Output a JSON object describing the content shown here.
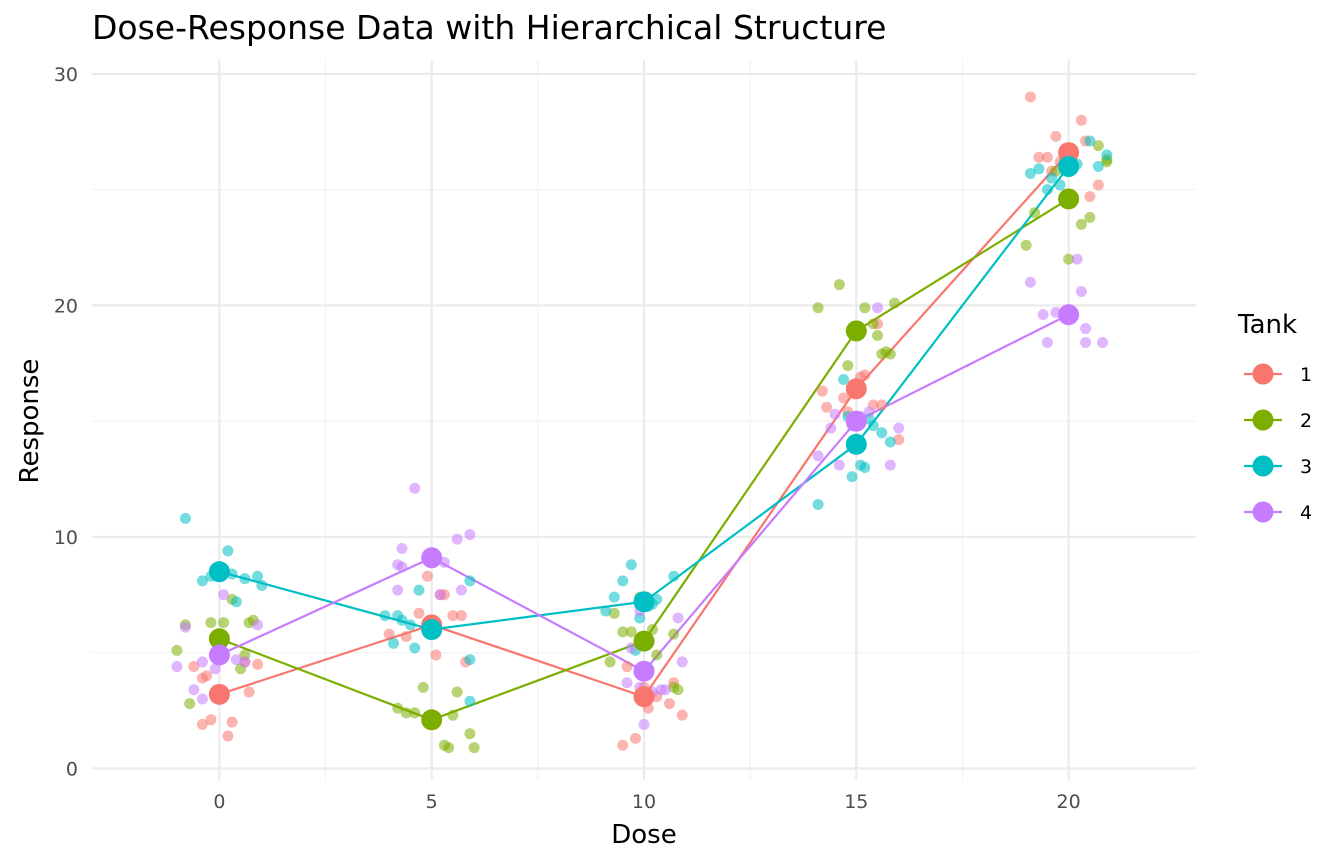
{
  "chart_data": {
    "type": "scatter",
    "title": "Dose-Response Data with Hierarchical Structure",
    "xlabel": "Dose",
    "ylabel": "Response",
    "xlim": [
      -3,
      23
    ],
    "ylim": [
      -0.5,
      30.6
    ],
    "x_ticks": [
      0,
      5,
      10,
      15,
      20
    ],
    "y_ticks": [
      0,
      10,
      20,
      30
    ],
    "grid": true,
    "legend": {
      "title": "Tank",
      "placement": "right"
    },
    "series": [
      {
        "name": "1",
        "color": "#F8766D",
        "means": [
          {
            "x": 0,
            "y": 3.2
          },
          {
            "x": 5,
            "y": 6.2
          },
          {
            "x": 10,
            "y": 3.1
          },
          {
            "x": 15,
            "y": 16.4
          },
          {
            "x": 20,
            "y": 26.6
          }
        ],
        "points": [
          {
            "x": -0.6,
            "y": 4.4
          },
          {
            "x": -0.4,
            "y": 3.9
          },
          {
            "x": -0.3,
            "y": 4.0
          },
          {
            "x": -0.4,
            "y": 1.9
          },
          {
            "x": -0.2,
            "y": 2.1
          },
          {
            "x": 0.2,
            "y": 1.4
          },
          {
            "x": 0.3,
            "y": 2.0
          },
          {
            "x": 0.6,
            "y": 4.6
          },
          {
            "x": 0.7,
            "y": 3.3
          },
          {
            "x": 0.9,
            "y": 4.5
          },
          {
            "x": 4.0,
            "y": 5.8
          },
          {
            "x": 4.7,
            "y": 6.7
          },
          {
            "x": 5.1,
            "y": 4.9
          },
          {
            "x": 5.3,
            "y": 7.5
          },
          {
            "x": 5.2,
            "y": 7.5
          },
          {
            "x": 5.5,
            "y": 6.6
          },
          {
            "x": 5.7,
            "y": 6.6
          },
          {
            "x": 5.8,
            "y": 4.6
          },
          {
            "x": 4.9,
            "y": 8.3
          },
          {
            "x": 4.4,
            "y": 5.7
          },
          {
            "x": 9.5,
            "y": 1.0
          },
          {
            "x": 9.8,
            "y": 1.3
          },
          {
            "x": 10.1,
            "y": 2.6
          },
          {
            "x": 10.6,
            "y": 2.8
          },
          {
            "x": 10.7,
            "y": 3.7
          },
          {
            "x": 10.9,
            "y": 2.3
          },
          {
            "x": 9.6,
            "y": 4.4
          },
          {
            "x": 10.0,
            "y": 3.5
          },
          {
            "x": 10.3,
            "y": 3.1
          },
          {
            "x": 9.9,
            "y": 3.0
          },
          {
            "x": 14.2,
            "y": 16.3
          },
          {
            "x": 14.3,
            "y": 15.6
          },
          {
            "x": 14.8,
            "y": 15.4
          },
          {
            "x": 15.1,
            "y": 16.9
          },
          {
            "x": 15.2,
            "y": 17.0
          },
          {
            "x": 15.4,
            "y": 15.7
          },
          {
            "x": 15.6,
            "y": 15.7
          },
          {
            "x": 16.0,
            "y": 14.2
          },
          {
            "x": 14.7,
            "y": 16.0
          },
          {
            "x": 15.5,
            "y": 19.2
          },
          {
            "x": 19.1,
            "y": 29.0
          },
          {
            "x": 19.3,
            "y": 26.4
          },
          {
            "x": 19.5,
            "y": 26.4
          },
          {
            "x": 19.7,
            "y": 27.3
          },
          {
            "x": 19.6,
            "y": 25.8
          },
          {
            "x": 20.3,
            "y": 28.0
          },
          {
            "x": 20.4,
            "y": 27.1
          },
          {
            "x": 20.5,
            "y": 24.7
          },
          {
            "x": 20.7,
            "y": 25.2
          },
          {
            "x": 19.8,
            "y": 26.2
          }
        ]
      },
      {
        "name": "2",
        "color": "#7CAE00",
        "means": [
          {
            "x": 0,
            "y": 5.6
          },
          {
            "x": 5,
            "y": 2.1
          },
          {
            "x": 10,
            "y": 5.5
          },
          {
            "x": 15,
            "y": 18.9
          },
          {
            "x": 20,
            "y": 24.6
          }
        ],
        "points": [
          {
            "x": -1.0,
            "y": 5.1
          },
          {
            "x": -0.8,
            "y": 6.2
          },
          {
            "x": -0.7,
            "y": 2.8
          },
          {
            "x": -0.2,
            "y": 6.3
          },
          {
            "x": 0.1,
            "y": 6.3
          },
          {
            "x": 0.3,
            "y": 7.3
          },
          {
            "x": 0.5,
            "y": 4.3
          },
          {
            "x": 0.6,
            "y": 4.9
          },
          {
            "x": 0.7,
            "y": 6.3
          },
          {
            "x": 0.8,
            "y": 6.4
          },
          {
            "x": 4.2,
            "y": 2.6
          },
          {
            "x": 4.4,
            "y": 2.4
          },
          {
            "x": 4.6,
            "y": 2.4
          },
          {
            "x": 4.8,
            "y": 3.5
          },
          {
            "x": 5.3,
            "y": 1.0
          },
          {
            "x": 5.4,
            "y": 0.9
          },
          {
            "x": 5.6,
            "y": 3.3
          },
          {
            "x": 5.9,
            "y": 1.5
          },
          {
            "x": 6.0,
            "y": 0.9
          },
          {
            "x": 5.5,
            "y": 2.3
          },
          {
            "x": 9.2,
            "y": 4.6
          },
          {
            "x": 9.3,
            "y": 6.7
          },
          {
            "x": 9.5,
            "y": 5.9
          },
          {
            "x": 9.7,
            "y": 5.9
          },
          {
            "x": 9.9,
            "y": 7.4
          },
          {
            "x": 10.2,
            "y": 6.0
          },
          {
            "x": 10.7,
            "y": 5.8
          },
          {
            "x": 10.7,
            "y": 3.5
          },
          {
            "x": 10.8,
            "y": 3.4
          },
          {
            "x": 10.3,
            "y": 4.9
          },
          {
            "x": 14.1,
            "y": 19.9
          },
          {
            "x": 14.6,
            "y": 20.9
          },
          {
            "x": 14.8,
            "y": 17.4
          },
          {
            "x": 15.2,
            "y": 19.9
          },
          {
            "x": 15.4,
            "y": 19.2
          },
          {
            "x": 15.5,
            "y": 18.7
          },
          {
            "x": 15.6,
            "y": 17.9
          },
          {
            "x": 15.7,
            "y": 18.0
          },
          {
            "x": 15.9,
            "y": 20.1
          },
          {
            "x": 15.8,
            "y": 17.9
          },
          {
            "x": 19.0,
            "y": 22.6
          },
          {
            "x": 19.2,
            "y": 24.0
          },
          {
            "x": 19.7,
            "y": 25.8
          },
          {
            "x": 20.0,
            "y": 22.0
          },
          {
            "x": 20.3,
            "y": 23.5
          },
          {
            "x": 20.5,
            "y": 23.8
          },
          {
            "x": 20.7,
            "y": 26.9
          },
          {
            "x": 20.9,
            "y": 26.3
          },
          {
            "x": 20.9,
            "y": 26.2
          },
          {
            "x": 19.9,
            "y": 26.2
          }
        ]
      },
      {
        "name": "3",
        "color": "#00BFC4",
        "means": [
          {
            "x": 0,
            "y": 8.5
          },
          {
            "x": 5,
            "y": 6.0
          },
          {
            "x": 10,
            "y": 7.2
          },
          {
            "x": 15,
            "y": 14.0
          },
          {
            "x": 20,
            "y": 26.0
          }
        ],
        "points": [
          {
            "x": -0.8,
            "y": 10.8
          },
          {
            "x": -0.2,
            "y": 8.3
          },
          {
            "x": 0.2,
            "y": 9.4
          },
          {
            "x": 0.3,
            "y": 8.4
          },
          {
            "x": 0.4,
            "y": 7.2
          },
          {
            "x": 0.6,
            "y": 8.2
          },
          {
            "x": 0.9,
            "y": 8.3
          },
          {
            "x": 1.0,
            "y": 7.9
          },
          {
            "x": 0.1,
            "y": 8.6
          },
          {
            "x": -0.4,
            "y": 8.1
          },
          {
            "x": 3.9,
            "y": 6.6
          },
          {
            "x": 4.1,
            "y": 5.4
          },
          {
            "x": 4.3,
            "y": 6.4
          },
          {
            "x": 4.6,
            "y": 5.2
          },
          {
            "x": 4.7,
            "y": 7.7
          },
          {
            "x": 5.9,
            "y": 4.7
          },
          {
            "x": 5.9,
            "y": 2.9
          },
          {
            "x": 5.9,
            "y": 8.1
          },
          {
            "x": 4.5,
            "y": 6.2
          },
          {
            "x": 4.2,
            "y": 6.6
          },
          {
            "x": 9.1,
            "y": 6.8
          },
          {
            "x": 9.3,
            "y": 7.4
          },
          {
            "x": 9.5,
            "y": 8.1
          },
          {
            "x": 9.7,
            "y": 8.8
          },
          {
            "x": 9.8,
            "y": 5.1
          },
          {
            "x": 10.2,
            "y": 7.1
          },
          {
            "x": 10.7,
            "y": 8.3
          },
          {
            "x": 10.1,
            "y": 7.0
          },
          {
            "x": 9.9,
            "y": 6.5
          },
          {
            "x": 10.3,
            "y": 7.3
          },
          {
            "x": 14.1,
            "y": 11.4
          },
          {
            "x": 14.7,
            "y": 16.8
          },
          {
            "x": 14.9,
            "y": 12.6
          },
          {
            "x": 15.1,
            "y": 13.1
          },
          {
            "x": 15.2,
            "y": 13.0
          },
          {
            "x": 15.4,
            "y": 14.8
          },
          {
            "x": 15.6,
            "y": 14.5
          },
          {
            "x": 15.8,
            "y": 14.1
          },
          {
            "x": 15.3,
            "y": 15.1
          },
          {
            "x": 14.8,
            "y": 15.2
          },
          {
            "x": 19.1,
            "y": 25.7
          },
          {
            "x": 19.3,
            "y": 25.9
          },
          {
            "x": 19.5,
            "y": 25.0
          },
          {
            "x": 19.8,
            "y": 25.2
          },
          {
            "x": 20.0,
            "y": 26.3
          },
          {
            "x": 20.2,
            "y": 26.1
          },
          {
            "x": 20.5,
            "y": 27.1
          },
          {
            "x": 20.7,
            "y": 26.0
          },
          {
            "x": 20.9,
            "y": 26.5
          },
          {
            "x": 19.6,
            "y": 25.5
          }
        ]
      },
      {
        "name": "4",
        "color": "#C77CFF",
        "means": [
          {
            "x": 0,
            "y": 4.9
          },
          {
            "x": 5,
            "y": 9.1
          },
          {
            "x": 10,
            "y": 4.2
          },
          {
            "x": 15,
            "y": 15.0
          },
          {
            "x": 20,
            "y": 19.6
          }
        ],
        "points": [
          {
            "x": -1.0,
            "y": 4.4
          },
          {
            "x": -0.8,
            "y": 6.1
          },
          {
            "x": -0.6,
            "y": 3.4
          },
          {
            "x": -0.4,
            "y": 3.0
          },
          {
            "x": -0.4,
            "y": 4.6
          },
          {
            "x": -0.1,
            "y": 4.3
          },
          {
            "x": 0.1,
            "y": 7.5
          },
          {
            "x": 0.4,
            "y": 4.7
          },
          {
            "x": 0.9,
            "y": 6.2
          },
          {
            "x": 0.6,
            "y": 4.6
          },
          {
            "x": 4.2,
            "y": 8.8
          },
          {
            "x": 4.3,
            "y": 9.5
          },
          {
            "x": 4.2,
            "y": 7.7
          },
          {
            "x": 4.6,
            "y": 12.1
          },
          {
            "x": 5.2,
            "y": 7.5
          },
          {
            "x": 5.3,
            "y": 8.9
          },
          {
            "x": 5.6,
            "y": 9.9
          },
          {
            "x": 5.7,
            "y": 7.7
          },
          {
            "x": 5.9,
            "y": 10.1
          },
          {
            "x": 4.3,
            "y": 8.7
          },
          {
            "x": 9.6,
            "y": 3.7
          },
          {
            "x": 9.9,
            "y": 3.5
          },
          {
            "x": 9.9,
            "y": 6.8
          },
          {
            "x": 10.0,
            "y": 1.9
          },
          {
            "x": 10.5,
            "y": 3.4
          },
          {
            "x": 10.8,
            "y": 6.5
          },
          {
            "x": 10.9,
            "y": 4.6
          },
          {
            "x": 9.7,
            "y": 5.2
          },
          {
            "x": 10.2,
            "y": 3.3
          },
          {
            "x": 10.4,
            "y": 3.4
          },
          {
            "x": 14.1,
            "y": 13.5
          },
          {
            "x": 14.4,
            "y": 14.7
          },
          {
            "x": 14.5,
            "y": 15.3
          },
          {
            "x": 14.6,
            "y": 13.1
          },
          {
            "x": 15.3,
            "y": 15.4
          },
          {
            "x": 15.5,
            "y": 19.9
          },
          {
            "x": 15.8,
            "y": 13.1
          },
          {
            "x": 16.0,
            "y": 14.7
          },
          {
            "x": 15.1,
            "y": 15.2
          },
          {
            "x": 14.9,
            "y": 14.8
          },
          {
            "x": 19.1,
            "y": 21.0
          },
          {
            "x": 19.4,
            "y": 19.6
          },
          {
            "x": 19.5,
            "y": 18.4
          },
          {
            "x": 19.7,
            "y": 19.7
          },
          {
            "x": 20.2,
            "y": 22.0
          },
          {
            "x": 20.3,
            "y": 20.6
          },
          {
            "x": 20.4,
            "y": 18.4
          },
          {
            "x": 20.4,
            "y": 19.0
          },
          {
            "x": 20.8,
            "y": 18.4
          },
          {
            "x": 19.9,
            "y": 19.7
          }
        ]
      }
    ]
  }
}
